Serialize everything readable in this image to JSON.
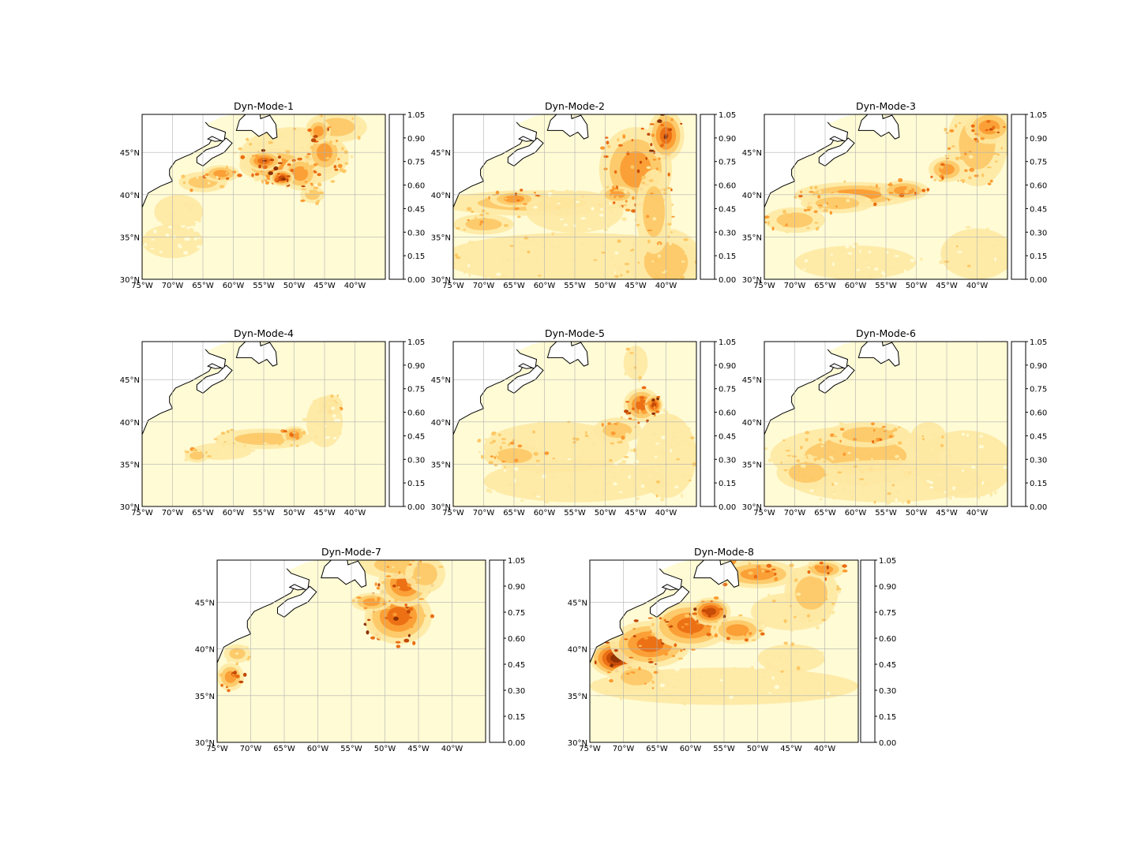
{
  "figure": {
    "colorbar": {
      "levels": [
        "0.00",
        "0.15",
        "0.30",
        "0.45",
        "0.60",
        "0.75",
        "0.90",
        "1.05"
      ],
      "colors": [
        "#fffbd5",
        "#fee9a3",
        "#fdc865",
        "#fb9b31",
        "#ea6c12",
        "#c34806",
        "#8a3004"
      ]
    },
    "axes": {
      "lon_ticks": [
        "75°W",
        "70°W",
        "65°W",
        "60°W",
        "55°W",
        "50°W",
        "45°W",
        "40°W"
      ],
      "lat_ticks": [
        "30°N",
        "35°N",
        "40°N",
        "45°N"
      ],
      "lon_range": [
        -75,
        -35
      ],
      "lat_range": [
        30,
        49.5
      ]
    },
    "land_color": "#ffffff",
    "coast_color": "#000000",
    "grid_color": "#b0b0b0"
  },
  "panels": [
    {
      "title": "Dyn-Mode-1",
      "blobs": [
        [
          -50,
          44.5,
          9,
          3.5,
          0.28
        ],
        [
          -53,
          43.5,
          6,
          2,
          0.5
        ],
        [
          -55,
          44,
          3,
          1.2,
          0.7
        ],
        [
          -49,
          42.5,
          3,
          2,
          0.55
        ],
        [
          -45,
          45,
          3,
          2.5,
          0.5
        ],
        [
          -43,
          48,
          5,
          1.8,
          0.35
        ],
        [
          -46,
          47.5,
          2,
          1.5,
          0.55
        ],
        [
          -65,
          41.5,
          4,
          1.2,
          0.35
        ],
        [
          -62,
          42.5,
          3,
          1,
          0.45
        ],
        [
          -52,
          42,
          2,
          1,
          0.75
        ],
        [
          -69,
          38,
          4,
          2,
          0.2
        ],
        [
          -70,
          34.5,
          5,
          2,
          0.1
        ],
        [
          -47,
          40,
          2,
          1,
          0.35
        ]
      ]
    },
    {
      "title": "Dyn-Mode-2",
      "blobs": [
        [
          -55,
          32.5,
          22,
          3,
          0.22
        ],
        [
          -40,
          32,
          6,
          4,
          0.3
        ],
        [
          -62,
          39,
          15,
          1.5,
          0.4
        ],
        [
          -70,
          36.5,
          5,
          1.2,
          0.35
        ],
        [
          -45,
          43,
          6,
          5,
          0.55
        ],
        [
          -40,
          47,
          3,
          3,
          0.7
        ],
        [
          -42,
          38,
          3,
          5,
          0.35
        ],
        [
          -55,
          38,
          8,
          2.5,
          0.15
        ],
        [
          -48,
          40,
          3,
          1,
          0.45
        ],
        [
          -65,
          39.5,
          4,
          1,
          0.55
        ]
      ]
    },
    {
      "title": "Dyn-Mode-3",
      "blobs": [
        [
          -60,
          40,
          10,
          1.5,
          0.45
        ],
        [
          -52,
          40.5,
          4,
          1.2,
          0.5
        ],
        [
          -70,
          37,
          5,
          1.5,
          0.35
        ],
        [
          -40,
          46,
          5,
          5,
          0.35
        ],
        [
          -38,
          48,
          4,
          2,
          0.55
        ],
        [
          -45,
          43,
          3,
          1.5,
          0.45
        ],
        [
          -40,
          33,
          6,
          3,
          0.22
        ],
        [
          -60,
          32,
          10,
          2,
          0.15
        ],
        [
          -63,
          39,
          6,
          1.2,
          0.35
        ]
      ]
    },
    {
      "title": "Dyn-Mode-4",
      "blobs": [
        [
          -55,
          38,
          8,
          1.2,
          0.3
        ],
        [
          -50,
          38.5,
          2,
          1,
          0.5
        ],
        [
          -44,
          42,
          2,
          1.2,
          0.35
        ],
        [
          -62,
          36.5,
          5,
          1,
          0.2
        ],
        [
          -66,
          36,
          2,
          0.8,
          0.35
        ],
        [
          -45,
          40,
          3,
          3,
          0.15
        ]
      ]
    },
    {
      "title": "Dyn-Mode-5",
      "blobs": [
        [
          -44,
          42,
          3,
          2,
          0.6
        ],
        [
          -42,
          42,
          1.5,
          1.2,
          0.75
        ],
        [
          -58,
          37,
          12,
          3,
          0.28
        ],
        [
          -65,
          36,
          5,
          1.5,
          0.4
        ],
        [
          -55,
          33,
          15,
          2.5,
          0.17
        ],
        [
          -40,
          36,
          5,
          5,
          0.22
        ],
        [
          -45,
          47,
          2,
          2,
          0.25
        ],
        [
          -48,
          39,
          4,
          1.5,
          0.35
        ]
      ]
    },
    {
      "title": "Dyn-Mode-6",
      "blobs": [
        [
          -60,
          36,
          14,
          3.5,
          0.33
        ],
        [
          -58,
          38.5,
          7,
          1.5,
          0.42
        ],
        [
          -55,
          33,
          16,
          2.5,
          0.22
        ],
        [
          -68,
          34,
          5,
          2,
          0.3
        ],
        [
          -42,
          35,
          8,
          4,
          0.17
        ],
        [
          -48,
          38,
          3,
          2,
          0.25
        ]
      ]
    },
    {
      "title": "Dyn-Mode-7",
      "blobs": [
        [
          -50,
          43,
          3,
          2,
          0.9
        ],
        [
          -48,
          43.5,
          5,
          3,
          0.7
        ],
        [
          -47,
          47,
          4,
          2.5,
          0.6
        ],
        [
          -48,
          49,
          6,
          1.5,
          0.35
        ],
        [
          -44,
          48,
          3,
          2,
          0.4
        ],
        [
          -73,
          37,
          2,
          1.5,
          0.55
        ],
        [
          -72,
          39.5,
          2,
          1,
          0.3
        ],
        [
          -52,
          45,
          3,
          1,
          0.45
        ]
      ]
    },
    {
      "title": "Dyn-Mode-8",
      "blobs": [
        [
          -71,
          39,
          4,
          2,
          0.9
        ],
        [
          -66,
          40.5,
          6,
          2.5,
          0.6
        ],
        [
          -60,
          42.5,
          6,
          2.5,
          0.6
        ],
        [
          -57,
          44,
          3,
          1.5,
          0.75
        ],
        [
          -53,
          42,
          4,
          1.5,
          0.45
        ],
        [
          -45,
          44,
          6,
          2,
          0.25
        ],
        [
          -42,
          46,
          4,
          3,
          0.3
        ],
        [
          -50,
          48,
          6,
          1.5,
          0.45
        ],
        [
          -40,
          48.5,
          3,
          1,
          0.55
        ],
        [
          -55,
          36,
          20,
          2,
          0.2
        ],
        [
          -45,
          39,
          5,
          1.5,
          0.25
        ],
        [
          -68,
          37,
          4,
          1.5,
          0.4
        ]
      ]
    }
  ]
}
